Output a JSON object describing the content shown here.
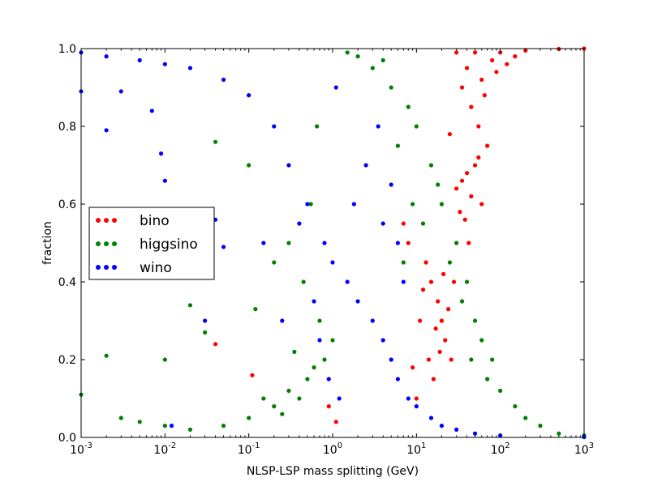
{
  "chart_data": {
    "type": "scatter",
    "xlabel": "NLSP-LSP mass splitting (GeV)",
    "ylabel": "fraction",
    "x_scale": "log",
    "xlim": [
      0.001,
      1000
    ],
    "ylim": [
      0.0,
      1.0
    ],
    "x_ticks": [
      {
        "base": "10",
        "exp": "-3",
        "value": 0.001
      },
      {
        "base": "10",
        "exp": "-2",
        "value": 0.01
      },
      {
        "base": "10",
        "exp": "-1",
        "value": 0.1
      },
      {
        "base": "10",
        "exp": "0",
        "value": 1
      },
      {
        "base": "10",
        "exp": "1",
        "value": 10
      },
      {
        "base": "10",
        "exp": "2",
        "value": 100
      },
      {
        "base": "10",
        "exp": "3",
        "value": 1000
      }
    ],
    "y_ticks": [
      "0.0",
      "0.2",
      "0.4",
      "0.6",
      "0.8",
      "1.0"
    ],
    "grid": false,
    "legend_position": "center-left",
    "series": [
      {
        "name": "bino",
        "color": "#ff0000",
        "points": [
          [
            30,
            0.99
          ],
          [
            50,
            0.99
          ],
          [
            100,
            0.99
          ],
          [
            200,
            0.995
          ],
          [
            500,
            0.999
          ],
          [
            1000,
            1.0
          ],
          [
            40,
            0.95
          ],
          [
            60,
            0.92
          ],
          [
            80,
            0.97
          ],
          [
            150,
            0.98
          ],
          [
            35,
            0.9
          ],
          [
            45,
            0.85
          ],
          [
            55,
            0.8
          ],
          [
            65,
            0.88
          ],
          [
            70,
            0.75
          ],
          [
            50,
            0.7
          ],
          [
            40,
            0.68
          ],
          [
            60,
            0.6
          ],
          [
            45,
            0.62
          ],
          [
            55,
            0.72
          ],
          [
            35,
            0.66
          ],
          [
            30,
            0.64
          ],
          [
            25,
            0.78
          ],
          [
            90,
            0.94
          ],
          [
            120,
            0.96
          ],
          [
            42,
            0.5
          ],
          [
            38,
            0.56
          ],
          [
            33,
            0.58
          ],
          [
            15,
            0.4
          ],
          [
            18,
            0.35
          ],
          [
            20,
            0.3
          ],
          [
            22,
            0.25
          ],
          [
            12,
            0.38
          ],
          [
            14,
            0.2
          ],
          [
            16,
            0.15
          ],
          [
            10,
            0.1
          ],
          [
            11,
            0.3
          ],
          [
            13,
            0.45
          ],
          [
            17,
            0.28
          ],
          [
            19,
            0.22
          ],
          [
            21,
            0.42
          ],
          [
            24,
            0.33
          ],
          [
            9,
            0.18
          ],
          [
            8,
            0.5
          ],
          [
            7,
            0.55
          ],
          [
            0.04,
            0.24
          ],
          [
            0.11,
            0.16
          ],
          [
            1.1,
            0.04
          ],
          [
            0.9,
            0.08
          ],
          [
            28,
            0.4
          ],
          [
            26,
            0.2
          ]
        ]
      },
      {
        "name": "higgsino",
        "color": "#008000",
        "points": [
          [
            0.001,
            0.11
          ],
          [
            0.003,
            0.05
          ],
          [
            0.005,
            0.04
          ],
          [
            0.01,
            0.03
          ],
          [
            0.02,
            0.02
          ],
          [
            0.05,
            0.03
          ],
          [
            0.1,
            0.05
          ],
          [
            0.2,
            0.08
          ],
          [
            0.3,
            0.12
          ],
          [
            0.5,
            0.15
          ],
          [
            0.8,
            0.2
          ],
          [
            1.0,
            0.25
          ],
          [
            0.15,
            0.1
          ],
          [
            0.25,
            0.06
          ],
          [
            0.4,
            0.1
          ],
          [
            0.6,
            0.18
          ],
          [
            0.7,
            0.3
          ],
          [
            0.35,
            0.22
          ],
          [
            0.45,
            0.4
          ],
          [
            0.55,
            0.6
          ],
          [
            0.65,
            0.8
          ],
          [
            0.3,
            0.5
          ],
          [
            0.1,
            0.7
          ],
          [
            0.2,
            0.45
          ],
          [
            0.12,
            0.33
          ],
          [
            1.5,
            0.99
          ],
          [
            2,
            0.98
          ],
          [
            3,
            0.95
          ],
          [
            5,
            0.9
          ],
          [
            8,
            0.85
          ],
          [
            10,
            0.8
          ],
          [
            15,
            0.7
          ],
          [
            20,
            0.6
          ],
          [
            30,
            0.5
          ],
          [
            40,
            0.4
          ],
          [
            50,
            0.3
          ],
          [
            60,
            0.25
          ],
          [
            80,
            0.2
          ],
          [
            100,
            0.12
          ],
          [
            150,
            0.08
          ],
          [
            200,
            0.05
          ],
          [
            300,
            0.03
          ],
          [
            500,
            0.01
          ],
          [
            1000,
            0.005
          ],
          [
            12,
            0.55
          ],
          [
            25,
            0.45
          ],
          [
            18,
            0.65
          ],
          [
            35,
            0.35
          ],
          [
            45,
            0.2
          ],
          [
            70,
            0.15
          ],
          [
            4,
            0.97
          ],
          [
            6,
            0.75
          ],
          [
            9,
            0.6
          ],
          [
            7,
            0.45
          ],
          [
            0.04,
            0.76
          ],
          [
            0.01,
            0.2
          ],
          [
            0.02,
            0.34
          ],
          [
            0.002,
            0.21
          ],
          [
            0.03,
            0.27
          ]
        ]
      },
      {
        "name": "wino",
        "color": "#0000ff",
        "points": [
          [
            0.001,
            0.99
          ],
          [
            0.002,
            0.98
          ],
          [
            0.005,
            0.97
          ],
          [
            0.01,
            0.96
          ],
          [
            0.02,
            0.95
          ],
          [
            0.05,
            0.92
          ],
          [
            0.1,
            0.88
          ],
          [
            0.2,
            0.8
          ],
          [
            0.3,
            0.7
          ],
          [
            0.5,
            0.6
          ],
          [
            0.8,
            0.5
          ],
          [
            1,
            0.45
          ],
          [
            1.5,
            0.4
          ],
          [
            2,
            0.35
          ],
          [
            3,
            0.3
          ],
          [
            4,
            0.25
          ],
          [
            5,
            0.2
          ],
          [
            6,
            0.15
          ],
          [
            8,
            0.1
          ],
          [
            10,
            0.08
          ],
          [
            15,
            0.05
          ],
          [
            20,
            0.03
          ],
          [
            30,
            0.02
          ],
          [
            50,
            0.01
          ],
          [
            100,
            0.005
          ],
          [
            1000,
            0.001
          ],
          [
            0.4,
            0.55
          ],
          [
            0.6,
            0.35
          ],
          [
            0.7,
            0.25
          ],
          [
            0.9,
            0.15
          ],
          [
            1.2,
            0.1
          ],
          [
            1.8,
            0.6
          ],
          [
            2.5,
            0.7
          ],
          [
            3.5,
            0.8
          ],
          [
            1.1,
            0.9
          ],
          [
            0.25,
            0.3
          ],
          [
            0.15,
            0.5
          ],
          [
            0.002,
            0.79
          ],
          [
            0.001,
            0.89
          ],
          [
            0.01,
            0.66
          ],
          [
            0.04,
            0.56
          ],
          [
            0.05,
            0.49
          ],
          [
            0.007,
            0.84
          ],
          [
            0.009,
            0.73
          ],
          [
            0.003,
            0.89
          ],
          [
            6,
            0.5
          ],
          [
            7,
            0.4
          ],
          [
            5,
            0.65
          ],
          [
            4,
            0.55
          ],
          [
            0.03,
            0.3
          ],
          [
            0.012,
            0.03
          ]
        ]
      }
    ]
  }
}
